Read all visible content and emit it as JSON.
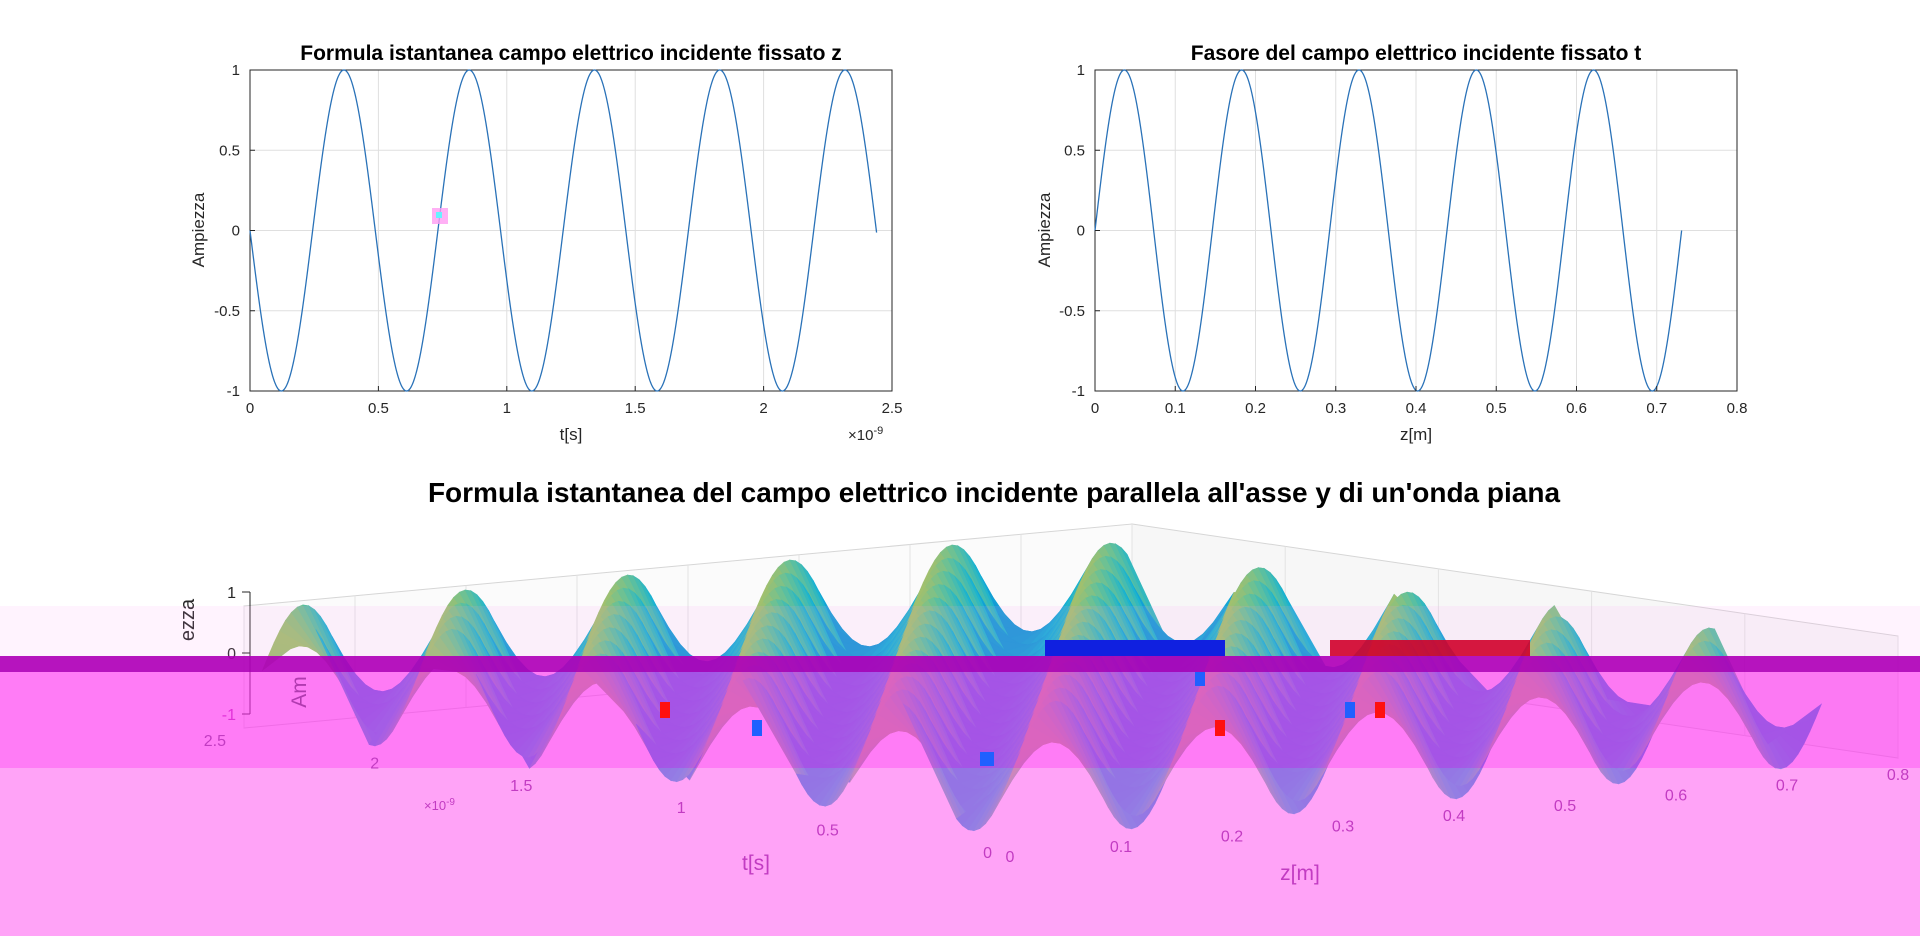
{
  "chart_data": [
    {
      "type": "line",
      "title": "Formula istantanea campo elettrico incidente fissato z",
      "xlabel": "t[s]",
      "ylabel": "Ampiezza",
      "x_exponent_label": "×10",
      "x_exponent": "-9",
      "xlim": [
        0,
        2.5
      ],
      "ylim": [
        -1,
        1
      ],
      "xticks": [
        "0",
        "0.5",
        "1",
        "1.5",
        "2",
        "2.5"
      ],
      "yticks": [
        "-1",
        "-0.5",
        "0",
        "0.5",
        "1"
      ],
      "x_scale": 1e-09,
      "grid": true,
      "series": [
        {
          "function": "-sin(2*pi*f*t)",
          "frequency_hz": 2050000000.0,
          "x_start": 0,
          "x_end": 2.44,
          "color": "#2a72b8"
        }
      ]
    },
    {
      "type": "line",
      "title": "Fasore del campo elettrico incidente fissato t",
      "xlabel": "z[m]",
      "ylabel": "Ampiezza",
      "xlim": [
        0,
        0.8
      ],
      "ylim": [
        -1,
        1
      ],
      "xticks": [
        "0",
        "0.1",
        "0.2",
        "0.3",
        "0.4",
        "0.5",
        "0.6",
        "0.7",
        "0.8"
      ],
      "yticks": [
        "-1",
        "-0.5",
        "0",
        "0.5",
        "1"
      ],
      "grid": true,
      "series": [
        {
          "function": "sin(2*pi*z/lambda)",
          "wavelength_m": 0.1462,
          "x_start": 0,
          "x_end": 0.731,
          "color": "#2a72b8"
        }
      ]
    },
    {
      "type": "surface",
      "title": "Formula istantanea del campo elettrico incidente parallela all'asse y di un'onda piana",
      "xlabel": "z[m]",
      "ylabel": "t[s]",
      "zlabel": "Ampiezza",
      "ylabel_visible": "Am",
      "zlabel_visible": "ezza",
      "y_exponent_label": "×10",
      "y_exponent": "-9",
      "xlim": [
        0,
        0.8
      ],
      "ylim": [
        0,
        2.5
      ],
      "zlim": [
        -1,
        1
      ],
      "xticks": [
        "0",
        "0.1",
        "0.2",
        "0.3",
        "0.4",
        "0.5",
        "0.6",
        "0.7",
        "0.8"
      ],
      "yticks": [
        "0",
        "0.5",
        "1",
        "1.5",
        "2",
        "2.5"
      ],
      "zticks": [
        "-1",
        "0",
        "1"
      ],
      "colormap": "parula",
      "grid": true
    }
  ],
  "colors": {
    "line": "#2a72b8",
    "grid": "#dfdfdf",
    "artifact_magenta": "#ff5cf0",
    "artifact_band": "#b000b8"
  }
}
